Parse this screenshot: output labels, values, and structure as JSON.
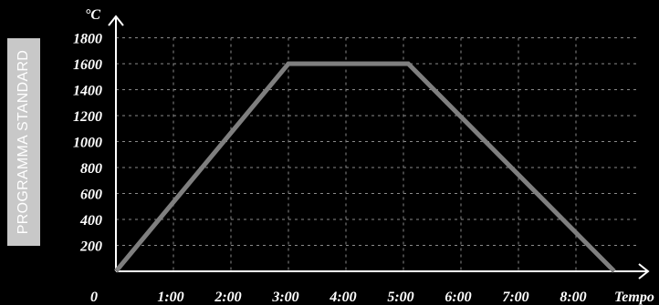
{
  "side_label": "PROGRAMMA STANDARD",
  "chart_data": {
    "type": "line",
    "xlabel": "Tempo",
    "ylabel": "°C",
    "x_unit": "h:mm",
    "x_ticks": [
      "0",
      "1:00",
      "2:00",
      "3:00",
      "4:00",
      "5:00",
      "6:00",
      "7:00",
      "8:00"
    ],
    "y_ticks": [
      "200",
      "400",
      "600",
      "800",
      "1000",
      "1200",
      "1400",
      "1600",
      "1800"
    ],
    "xlim": [
      0,
      540
    ],
    "ylim": [
      0,
      1800
    ],
    "grid": true,
    "series": [
      {
        "color": "#7f7f7f",
        "points": [
          {
            "x": 0,
            "y": 0
          },
          {
            "x": 180,
            "y": 1600
          },
          {
            "x": 305,
            "y": 1600
          },
          {
            "x": 520,
            "y": 0
          }
        ]
      }
    ]
  }
}
